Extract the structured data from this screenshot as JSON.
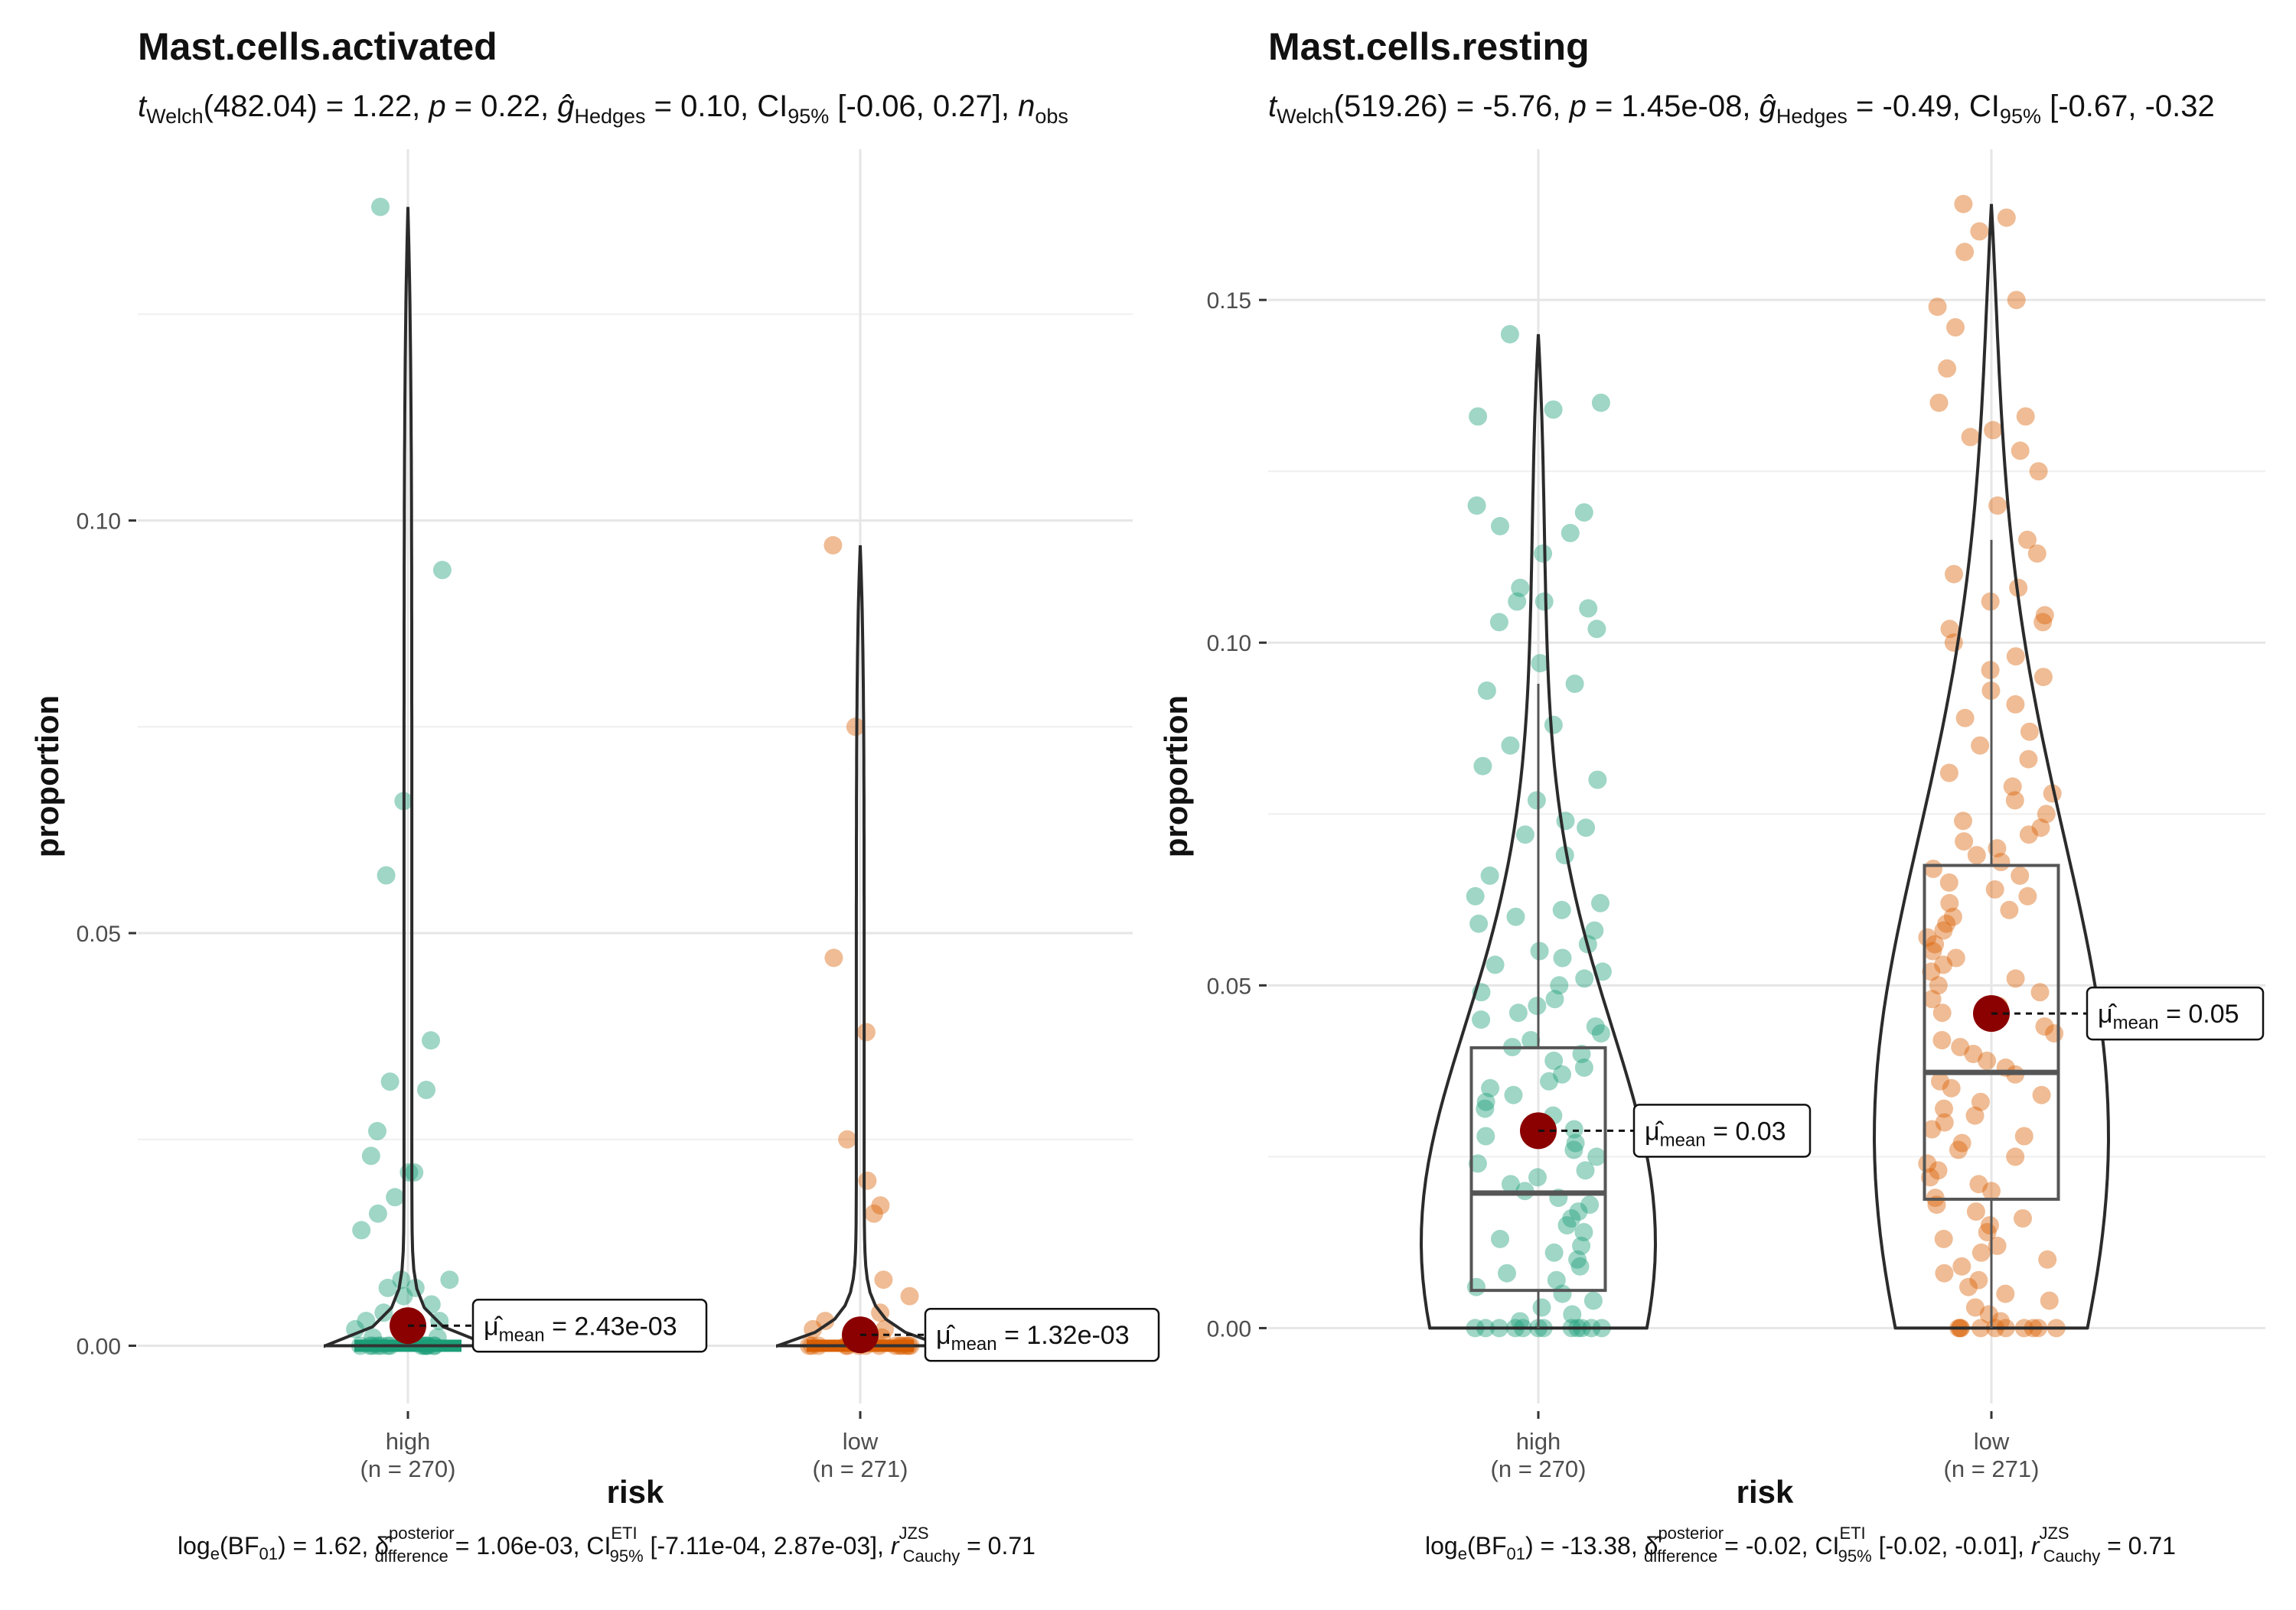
{
  "chart_data": [
    {
      "type": "violin-box-scatter",
      "title": "Mast.cells.activated",
      "subtitle": {
        "stat_name": "t",
        "stat_sub": "Welch",
        "stat_text": "(482.04) = 1.22, ",
        "p_label": "p",
        "p_text": " = 0.22, ",
        "g_label": "ĝ",
        "g_sub": "Hedges",
        "g_text": " = 0.10, CI",
        "ci_sub": "95%",
        "ci_text": " [-0.06, 0.27], ",
        "n_label": "n",
        "n_sub": "obs"
      },
      "xlabel": "risk",
      "ylabel": "proportion",
      "ylim": [
        -0.007,
        0.145
      ],
      "yticks": [
        0.0,
        0.05,
        0.1
      ],
      "ytick_labels": [
        "0.00",
        "0.05",
        "0.10"
      ],
      "categories": [
        "high",
        "low"
      ],
      "category_counts": [
        "(n = 270)",
        "(n = 271)"
      ],
      "colors": [
        "#1b9e77",
        "#d95f02"
      ],
      "means": [
        0.00243,
        0.00132
      ],
      "mean_labels": [
        "= 2.43e-03",
        "= 1.32e-03"
      ],
      "mean_symbol": "μ̂",
      "mean_sub": "mean",
      "boxes": [
        {
          "q1": 0.0,
          "median": 0.0,
          "q3": 0.0,
          "whisker_low": 0.0,
          "whisker_high": 0.0
        },
        {
          "q1": 0.0,
          "median": 0.0,
          "q3": 0.0,
          "whisker_low": 0.0,
          "whisker_high": 0.0
        }
      ],
      "violin_max": [
        0.138,
        0.097
      ],
      "points": [
        [
          0.138,
          0.094,
          0.066,
          0.057,
          0.037,
          0.032,
          0.031,
          0.026,
          0.023,
          0.021,
          0.021,
          0.018,
          0.016,
          0.014,
          0.008,
          0.008,
          0.007,
          0.007,
          0.006,
          0.005,
          0.004,
          0.003,
          0.003,
          0.002,
          0.002,
          0.001,
          0.001,
          0,
          0,
          0,
          0,
          0,
          0,
          0,
          0,
          0,
          0,
          0,
          0,
          0,
          0
        ],
        [
          0.097,
          0.075,
          0.047,
          0.038,
          0.025,
          0.02,
          0.017,
          0.016,
          0.008,
          0.006,
          0.004,
          0.003,
          0.002,
          0.002,
          0.001,
          0.001,
          0,
          0,
          0,
          0,
          0,
          0,
          0,
          0,
          0,
          0,
          0,
          0,
          0,
          0
        ]
      ],
      "caption": {
        "bf_text": "log",
        "bf_sub": "e",
        "bf_rest": "(BF",
        "bf_rest_sub": "01",
        "bf_value": ") = 1.62, ",
        "delta": "δ̂",
        "delta_sup": "posterior",
        "delta_sub": "difference",
        "delta_value": " = 1.06e-03, CI",
        "ci_sup": "ETI",
        "ci_sub": "95%",
        "ci_value": " [-7.11e-04, 2.87e-03], ",
        "r_label": "r",
        "r_sup": "JZS",
        "r_sub": "Cauchy",
        "r_value": " = 0.71"
      }
    },
    {
      "type": "violin-box-scatter",
      "title": "Mast.cells.resting",
      "subtitle": {
        "stat_name": "t",
        "stat_sub": "Welch",
        "stat_text": "(519.26) = -5.76, ",
        "p_label": "p",
        "p_text": " = 1.45e-08, ",
        "g_label": "ĝ",
        "g_sub": "Hedges",
        "g_text": " = -0.49, CI",
        "ci_sub": "95%",
        "ci_text": " [-0.67, -0.32",
        "n_label": "",
        "n_sub": ""
      },
      "xlabel": "risk",
      "ylabel": "proportion",
      "ylim": [
        -0.011,
        0.172
      ],
      "yticks": [
        0.0,
        0.05,
        0.1,
        0.15
      ],
      "ytick_labels": [
        "0.00",
        "0.05",
        "0.10",
        "0.15"
      ],
      "categories": [
        "high",
        "low"
      ],
      "category_counts": [
        "(n = 270)",
        "(n = 271)"
      ],
      "colors": [
        "#1b9e77",
        "#d95f02"
      ],
      "means": [
        0.0288,
        0.0459
      ],
      "mean_labels": [
        "= 0.03",
        "= 0.05"
      ],
      "mean_symbol": "μ̂",
      "mean_sub": "mean",
      "boxes": [
        {
          "q1": 0.0055,
          "median": 0.0197,
          "q3": 0.0409,
          "whisker_low": 0.0,
          "whisker_high": 0.094
        },
        {
          "q1": 0.0188,
          "median": 0.0373,
          "q3": 0.0675,
          "whisker_low": 0.0,
          "whisker_high": 0.115
        }
      ],
      "violin_max": [
        0.145,
        0.164
      ],
      "points": [
        [
          0.145,
          0.135,
          0.134,
          0.133,
          0.12,
          0.119,
          0.117,
          0.116,
          0.113,
          0.108,
          0.106,
          0.106,
          0.105,
          0.103,
          0.102,
          0.097,
          0.094,
          0.093,
          0.088,
          0.085,
          0.082,
          0.08,
          0.077,
          0.074,
          0.073,
          0.072,
          0.069,
          0.066,
          0.063,
          0.062,
          0.061,
          0.06,
          0.059,
          0.058,
          0.056,
          0.055,
          0.054,
          0.053,
          0.052,
          0.051,
          0.05,
          0.049,
          0.048,
          0.047,
          0.046,
          0.045,
          0.044,
          0.043,
          0.042,
          0.041,
          0.04,
          0.039,
          0.038,
          0.037,
          0.036,
          0.035,
          0.034,
          0.033,
          0.032,
          0.031,
          0.03,
          0.029,
          0.028,
          0.027,
          0.026,
          0.025,
          0.024,
          0.023,
          0.022,
          0.021,
          0.02,
          0.019,
          0.018,
          0.017,
          0.016,
          0.015,
          0.014,
          0.013,
          0.012,
          0.011,
          0.01,
          0.009,
          0.008,
          0.007,
          0.006,
          0.005,
          0.004,
          0.003,
          0.002,
          0.001,
          0,
          0,
          0,
          0,
          0,
          0,
          0,
          0,
          0,
          0,
          0,
          0
        ],
        [
          0.164,
          0.162,
          0.16,
          0.157,
          0.15,
          0.149,
          0.146,
          0.14,
          0.135,
          0.133,
          0.131,
          0.13,
          0.128,
          0.125,
          0.12,
          0.115,
          0.113,
          0.11,
          0.108,
          0.106,
          0.104,
          0.103,
          0.102,
          0.1,
          0.098,
          0.096,
          0.095,
          0.093,
          0.091,
          0.089,
          0.087,
          0.085,
          0.083,
          0.081,
          0.079,
          0.078,
          0.077,
          0.075,
          0.074,
          0.073,
          0.072,
          0.071,
          0.07,
          0.069,
          0.068,
          0.067,
          0.066,
          0.065,
          0.064,
          0.063,
          0.062,
          0.061,
          0.06,
          0.059,
          0.058,
          0.057,
          0.056,
          0.055,
          0.054,
          0.053,
          0.052,
          0.051,
          0.05,
          0.049,
          0.048,
          0.047,
          0.046,
          0.045,
          0.044,
          0.043,
          0.042,
          0.041,
          0.04,
          0.039,
          0.038,
          0.037,
          0.036,
          0.035,
          0.034,
          0.033,
          0.032,
          0.031,
          0.03,
          0.029,
          0.028,
          0.027,
          0.026,
          0.025,
          0.024,
          0.023,
          0.022,
          0.021,
          0.02,
          0.019,
          0.018,
          0.017,
          0.016,
          0.015,
          0.014,
          0.013,
          0.012,
          0.011,
          0.01,
          0.009,
          0.008,
          0.007,
          0.006,
          0.005,
          0.004,
          0.003,
          0.002,
          0.001,
          0,
          0,
          0,
          0,
          0,
          0,
          0,
          0,
          0,
          0
        ]
      ],
      "caption": {
        "bf_text": "log",
        "bf_sub": "e",
        "bf_rest": "(BF",
        "bf_rest_sub": "01",
        "bf_value": ") = -13.38, ",
        "delta": "δ̂",
        "delta_sup": "posterior",
        "delta_sub": "difference",
        "delta_value": " = -0.02, CI",
        "ci_sup": "ETI",
        "ci_sub": "95%",
        "ci_value": " [-0.02, -0.01], ",
        "r_label": "r",
        "r_sup": "JZS",
        "r_sub": "Cauchy",
        "r_value": " = 0.71"
      }
    }
  ]
}
